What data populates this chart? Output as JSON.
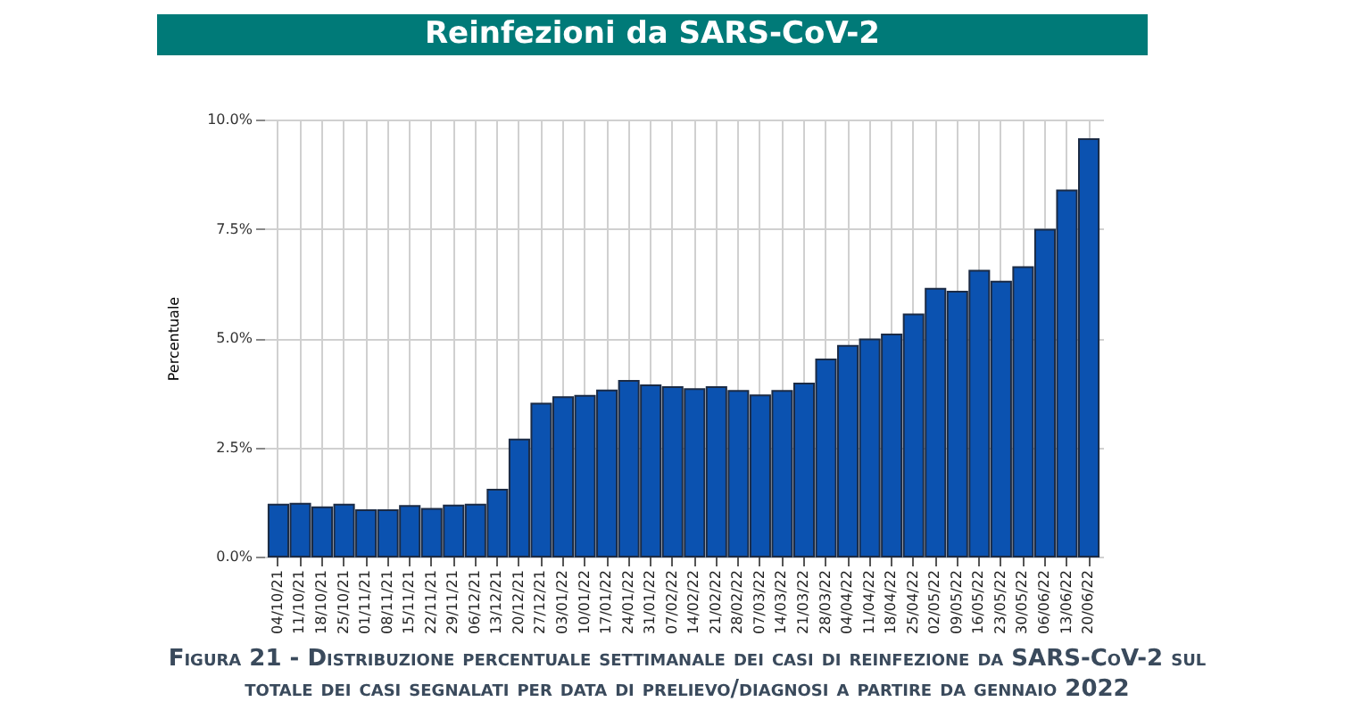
{
  "chart_data": {
    "type": "bar",
    "title": "Reinfezioni da SARS-CoV-2",
    "ylabel": "Percentuale",
    "categories": [
      "04/10/21",
      "11/10/21",
      "18/10/21",
      "25/10/21",
      "01/11/21",
      "08/11/21",
      "15/11/21",
      "22/11/21",
      "29/11/21",
      "06/12/21",
      "13/12/21",
      "20/12/21",
      "27/12/21",
      "03/01/22",
      "10/01/22",
      "17/01/22",
      "24/01/22",
      "31/01/22",
      "07/02/22",
      "14/02/22",
      "21/02/22",
      "28/02/22",
      "07/03/22",
      "14/03/22",
      "21/03/22",
      "28/03/22",
      "04/04/22",
      "11/04/22",
      "18/04/22",
      "25/04/22",
      "02/05/22",
      "09/05/22",
      "16/05/22",
      "23/05/22",
      "30/05/22",
      "06/06/22",
      "13/06/22",
      "20/06/22"
    ],
    "values": [
      1.19,
      1.21,
      1.13,
      1.19,
      1.06,
      1.06,
      1.16,
      1.09,
      1.17,
      1.19,
      1.53,
      2.68,
      3.5,
      3.65,
      3.68,
      3.8,
      4.02,
      3.92,
      3.88,
      3.83,
      3.88,
      3.79,
      3.69,
      3.79,
      3.96,
      4.51,
      4.82,
      4.97,
      5.08,
      5.54,
      6.13,
      6.06,
      6.54,
      6.29,
      6.62,
      7.48,
      8.38,
      9.55
    ],
    "color": "#0b52b0",
    "ylim": [
      0,
      10
    ],
    "yticks": [
      {
        "value": 0,
        "label": "0.0%"
      },
      {
        "value": 2.5,
        "label": "2.5%"
      },
      {
        "value": 5,
        "label": "5.0%"
      },
      {
        "value": 7.5,
        "label": "7.5%"
      },
      {
        "value": 10,
        "label": "10.0%"
      }
    ],
    "grid": true,
    "annotations": [
      "Figura 21 - Distribuzione percentuale settimanale dei casi di reinfezione da SARS-CoV-2 sul totale dei casi segnalati per data di prelievo/diagnosi a partire da gennaio 2022"
    ]
  }
}
